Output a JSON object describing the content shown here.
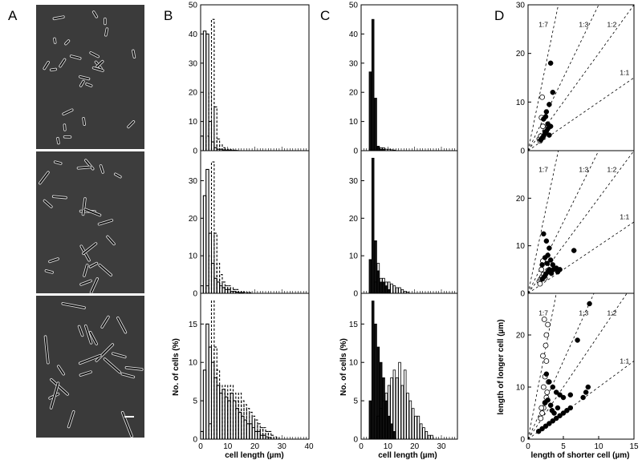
{
  "figure": {
    "panel_labels": [
      "A",
      "B",
      "C",
      "D"
    ],
    "yaxis_label_BC": "No. of cells (%)",
    "xaxis_label_BC": "cell length (µm)",
    "yaxis_label_D": "length of longer cell (µm)",
    "xaxis_label_D": "length of shorter cell (µm)",
    "ratio_labels": [
      "1:7",
      "1:3",
      "1:2",
      "1:1"
    ]
  },
  "chart_data": [
    {
      "panel": "B",
      "type": "bar",
      "xlabel": "cell length (µm)",
      "ylabel": "No. of cells (%)",
      "xlim": [
        0,
        40
      ],
      "xticks": [
        0,
        10,
        20,
        30,
        40
      ],
      "rows": [
        {
          "ylim": [
            0,
            50
          ],
          "yticks": [
            0,
            10,
            20,
            30,
            40,
            50
          ],
          "series": [
            {
              "style": "solid",
              "bins": [
                0,
                1,
                2,
                3,
                4,
                5,
                6,
                7,
                8,
                9,
                10,
                11,
                12
              ],
              "values": [
                5,
                41,
                40,
                10,
                3,
                1,
                0.5,
                0.5,
                0.3,
                0.2,
                0.2,
                0.1,
                0.1
              ]
            },
            {
              "style": "dashed",
              "bins": [
                2,
                3,
                4,
                5,
                6,
                7,
                8,
                9,
                10,
                11,
                12,
                13
              ],
              "values": [
                5,
                20,
                45,
                15,
                4,
                2,
                1,
                0.5,
                0.5,
                0.3,
                0.2,
                0.1
              ]
            }
          ]
        },
        {
          "ylim": [
            0,
            38
          ],
          "yticks": [
            0,
            10,
            20,
            30
          ],
          "series": [
            {
              "style": "solid",
              "bins": [
                0,
                1,
                2,
                3,
                4,
                5,
                6,
                7,
                8,
                9,
                10,
                11,
                12,
                13,
                14,
                15
              ],
              "values": [
                2,
                26,
                33,
                16,
                8,
                4,
                3,
                2,
                1.5,
                1,
                1,
                0.5,
                0.5,
                0.3,
                0.2,
                0.2
              ]
            },
            {
              "style": "dashed",
              "bins": [
                2,
                3,
                4,
                5,
                6,
                7,
                8,
                9,
                10,
                11,
                12,
                13,
                14,
                15,
                16,
                17,
                18
              ],
              "values": [
                2,
                10,
                35,
                16,
                8,
                5,
                3,
                2,
                2,
                1.5,
                1,
                1,
                0.5,
                0.5,
                0.3,
                0.2,
                0.2
              ]
            }
          ]
        },
        {
          "ylim": [
            0,
            19
          ],
          "yticks": [
            0,
            5,
            10,
            15
          ],
          "series": [
            {
              "style": "solid",
              "bins": [
                0,
                1,
                2,
                3,
                4,
                5,
                6,
                7,
                8,
                9,
                10,
                11,
                12,
                13,
                14,
                15,
                16,
                17,
                18,
                19,
                20,
                21,
                22,
                23,
                24,
                25
              ],
              "values": [
                1,
                9,
                15,
                12,
                10,
                8,
                7,
                6,
                6.5,
                5.5,
                5,
                6,
                5,
                4,
                3.5,
                3,
                2.5,
                2,
                2,
                1.5,
                1,
                1,
                0.5,
                0.5,
                0.3,
                0.2
              ]
            },
            {
              "style": "dashed",
              "bins": [
                3,
                4,
                5,
                6,
                7,
                8,
                9,
                10,
                11,
                12,
                13,
                14,
                15,
                16,
                17,
                18,
                19,
                20,
                21,
                22,
                23,
                24,
                25,
                26,
                27,
                28
              ],
              "values": [
                2,
                18,
                12,
                9,
                7,
                6,
                7,
                6,
                7,
                6,
                5,
                6,
                5,
                4.5,
                4,
                3.5,
                3,
                2.5,
                2,
                1.5,
                1.5,
                1,
                1,
                0.5,
                0.3,
                0.2
              ]
            }
          ]
        }
      ]
    },
    {
      "panel": "C",
      "type": "bar",
      "xlabel": "cell length (µm)",
      "ylabel": "No. of cells (%)",
      "xlim": [
        0,
        36
      ],
      "xticks": [
        0,
        10,
        20,
        30
      ],
      "rows": [
        {
          "ylim": [
            0,
            50
          ],
          "yticks": [
            0,
            10,
            20,
            30,
            40,
            50
          ],
          "series": [
            {
              "style": "filled",
              "bins": [
                3,
                4,
                5,
                6,
                7,
                8
              ],
              "values": [
                27,
                45,
                18,
                1.5,
                0.5,
                0.5
              ]
            },
            {
              "style": "open",
              "bins": [
                6,
                7,
                8,
                9,
                10,
                11,
                12
              ],
              "values": [
                1.5,
                1,
                1,
                0.5,
                0.5,
                0.3,
                0.2
              ]
            }
          ]
        },
        {
          "ylim": [
            0,
            38
          ],
          "yticks": [
            0,
            10,
            20,
            30
          ],
          "series": [
            {
              "style": "filled",
              "bins": [
                3,
                4,
                5,
                6,
                7,
                8,
                9,
                10
              ],
              "values": [
                9,
                36,
                14,
                6,
                3,
                3,
                2,
                1
              ]
            },
            {
              "style": "open",
              "bins": [
                5,
                6,
                7,
                8,
                9,
                10,
                11,
                12,
                13,
                14,
                15,
                16,
                17
              ],
              "values": [
                3,
                8,
                4,
                4,
                3,
                3,
                2.5,
                2,
                1.5,
                1.5,
                1,
                0.5,
                0.3
              ]
            }
          ]
        },
        {
          "ylim": [
            0,
            19
          ],
          "yticks": [
            0,
            5,
            10,
            15
          ],
          "series": [
            {
              "style": "filled",
              "bins": [
                3,
                4,
                5,
                6,
                7,
                8,
                9,
                10,
                11,
                12
              ],
              "values": [
                5,
                18,
                15,
                12,
                10,
                8,
                5,
                3,
                2,
                1
              ]
            },
            {
              "style": "open",
              "bins": [
                6,
                7,
                8,
                9,
                10,
                11,
                12,
                13,
                14,
                15,
                16,
                17,
                18,
                19,
                20,
                21,
                22,
                23,
                24,
                25,
                26
              ],
              "values": [
                3,
                4,
                5,
                6,
                7,
                8,
                9,
                8,
                10,
                7,
                9,
                6,
                5,
                4,
                3,
                3,
                2,
                1.5,
                1,
                0.5,
                0.5
              ]
            }
          ]
        }
      ]
    },
    {
      "panel": "D",
      "type": "scatter",
      "xlabel": "length of shorter cell (µm)",
      "ylabel": "length of longer cell (µm)",
      "xlim": [
        0,
        15
      ],
      "xticks": [
        0,
        5,
        10,
        15
      ],
      "ratio_lines": [
        {
          "label": "1:7",
          "slope": 7
        },
        {
          "label": "1:3",
          "slope": 3
        },
        {
          "label": "1:2",
          "slope": 2
        },
        {
          "label": "1:1",
          "slope": 1
        }
      ],
      "rows": [
        {
          "ylim": [
            0,
            30
          ],
          "yticks": [
            0,
            10,
            20,
            30
          ],
          "filled": [
            [
              1.8,
              2.2
            ],
            [
              2,
              2.6
            ],
            [
              2.2,
              3
            ],
            [
              2.4,
              3.5
            ],
            [
              2.6,
              4
            ],
            [
              2.8,
              4.5
            ],
            [
              3,
              3.2
            ],
            [
              2.2,
              6.5
            ],
            [
              2.5,
              7
            ],
            [
              2.8,
              5.5
            ],
            [
              3.2,
              18
            ],
            [
              3.5,
              12
            ],
            [
              3,
              9.5
            ],
            [
              2.6,
              8
            ],
            [
              3.2,
              5
            ],
            [
              2.4,
              3.8
            ]
          ],
          "open": [
            [
              1.6,
              2.4
            ],
            [
              1.8,
              3
            ],
            [
              2,
              11
            ],
            [
              2.1,
              5
            ],
            [
              1.9,
              6.8
            ],
            [
              1.7,
              2
            ]
          ]
        },
        {
          "ylim": [
            0,
            30
          ],
          "yticks": [
            0,
            10,
            20
          ],
          "filled": [
            [
              2,
              3
            ],
            [
              2.3,
              3.5
            ],
            [
              2.5,
              4
            ],
            [
              2.8,
              4.5
            ],
            [
              3,
              5
            ],
            [
              3.3,
              4.2
            ],
            [
              3.6,
              5
            ],
            [
              4,
              5.3
            ],
            [
              4.5,
              5
            ],
            [
              2.2,
              12.5
            ],
            [
              2.6,
              11
            ],
            [
              3,
              9.5
            ],
            [
              2.8,
              8
            ],
            [
              3.2,
              7
            ],
            [
              3.5,
              6
            ],
            [
              2.4,
              7.5
            ],
            [
              6.5,
              9
            ],
            [
              2,
              6
            ],
            [
              2.7,
              6.3
            ],
            [
              4.2,
              4.5
            ]
          ],
          "open": [
            [
              1.6,
              2.5
            ],
            [
              1.8,
              3
            ],
            [
              2,
              3.5
            ],
            [
              2.2,
              4
            ],
            [
              1.9,
              5
            ],
            [
              2.1,
              6.8
            ],
            [
              2.4,
              3.2
            ],
            [
              1.7,
              2
            ]
          ]
        },
        {
          "ylim": [
            0,
            28
          ],
          "yticks": [
            0,
            10,
            20
          ],
          "filled": [
            [
              1.5,
              1.5
            ],
            [
              2,
              2
            ],
            [
              2.5,
              2.5
            ],
            [
              3,
              3
            ],
            [
              3.5,
              3.5
            ],
            [
              4,
              4
            ],
            [
              4.5,
              4.5
            ],
            [
              5,
              5
            ],
            [
              5.5,
              5.5
            ],
            [
              6,
              6
            ],
            [
              2.6,
              12.5
            ],
            [
              3,
              11
            ],
            [
              3.5,
              10
            ],
            [
              4,
              9
            ],
            [
              4.5,
              8.5
            ],
            [
              5,
              8
            ],
            [
              2.8,
              7.5
            ],
            [
              3.2,
              6.5
            ],
            [
              8.7,
              26
            ],
            [
              7,
              19
            ],
            [
              8.5,
              10
            ],
            [
              7.8,
              8
            ],
            [
              8.2,
              9
            ],
            [
              6,
              8.5
            ],
            [
              3.7,
              5
            ],
            [
              4.2,
              6
            ],
            [
              3.4,
              5.5
            ],
            [
              2.4,
              7
            ]
          ],
          "open": [
            [
              1.8,
              4
            ],
            [
              2,
              5
            ],
            [
              2.2,
              6
            ],
            [
              2.4,
              7
            ],
            [
              2.6,
              8
            ],
            [
              2.2,
              10
            ],
            [
              2.4,
              12
            ],
            [
              2.6,
              15
            ],
            [
              2.5,
              18
            ],
            [
              2.8,
              22
            ],
            [
              2.6,
              20
            ],
            [
              2.3,
              23
            ],
            [
              2.1,
              16
            ],
            [
              1.9,
              6
            ],
            [
              2.7,
              9
            ],
            [
              2.9,
              11
            ]
          ]
        }
      ]
    }
  ]
}
